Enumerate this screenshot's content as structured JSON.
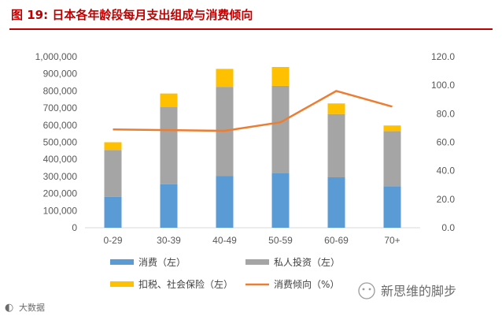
{
  "page": {
    "title": "图 19:  日本各年龄段每月支出组成与消费倾向",
    "watermark_right": "新思维的脚步",
    "watermark_left": "大数据"
  },
  "colors": {
    "consumption": "#5b9bd5",
    "private_investment": "#a5a5a5",
    "tax_insurance": "#ffc000",
    "propensity": "#ed7d31",
    "title": "#c00000"
  },
  "chart_data": {
    "type": "bar",
    "stacked": true,
    "categories": [
      "0-29",
      "30-39",
      "40-49",
      "50-59",
      "60-69",
      "70+"
    ],
    "series": [
      {
        "name": "消费（左）",
        "axis": "left",
        "values": [
          180000,
          255000,
          302000,
          318000,
          295000,
          243000
        ]
      },
      {
        "name": "私人投资（左）",
        "axis": "left",
        "values": [
          275000,
          450000,
          522000,
          512000,
          370000,
          322000
        ]
      },
      {
        "name": "扣税、社会保险（左）",
        "axis": "left",
        "values": [
          45000,
          80000,
          105000,
          110000,
          62000,
          33000
        ]
      },
      {
        "name": "消费倾向（%）",
        "axis": "right",
        "type": "line",
        "values": [
          69,
          68.5,
          68,
          74,
          96,
          85
        ]
      }
    ],
    "left_axis": {
      "ylim": [
        0,
        1000000
      ],
      "ticks": [
        "0",
        "100,000",
        "200,000",
        "300,000",
        "400,000",
        "500,000",
        "600,000",
        "700,000",
        "800,000",
        "900,000",
        "1,000,000"
      ]
    },
    "right_axis": {
      "ylim": [
        0,
        120
      ],
      "ticks": [
        "0.0",
        "20.0",
        "40.0",
        "60.0",
        "80.0",
        "100.0",
        "120.0"
      ]
    },
    "legend": {
      "position": "bottom",
      "items": [
        "消费（左）",
        "私人投资（左）",
        "扣税、社会保险（左）",
        "消费倾向（%）"
      ]
    },
    "grid": false
  }
}
